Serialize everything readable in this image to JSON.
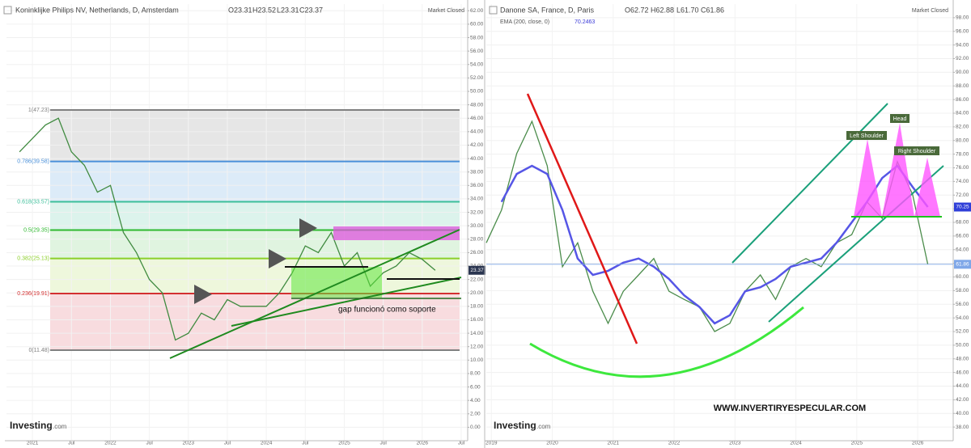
{
  "chart_data": [
    {
      "type": "line",
      "title": "Koninklijke Philips NV, Netherlands, D, Amsterdam",
      "ohlc": [
        "O23.31",
        "H23.52",
        "L23.31",
        "C23.37"
      ],
      "status": "Market Closed",
      "watermark_brand": "Investing",
      "watermark_suffix": ".com",
      "xlim": [
        "2020-09",
        "2026-08"
      ],
      "ylim": [
        -2,
        63
      ],
      "grid": true,
      "x": [
        "2020-11",
        "2021-01",
        "2021-03",
        "2021-05",
        "2021-07",
        "2021-09",
        "2021-11",
        "2022-01",
        "2022-03",
        "2022-05",
        "2022-07",
        "2022-09",
        "2022-11",
        "2023-01",
        "2023-03",
        "2023-05",
        "2023-07",
        "2023-09",
        "2023-11",
        "2024-01",
        "2024-03",
        "2024-05",
        "2024-07",
        "2024-09",
        "2024-11",
        "2025-01",
        "2025-03",
        "2025-05",
        "2025-07",
        "2025-09",
        "2025-11",
        "2026-01",
        "2026-03"
      ],
      "series": [
        {
          "color": "#3f8a3f",
          "values": [
            41,
            43,
            45,
            46,
            41,
            39,
            35,
            36,
            29,
            26,
            22,
            20,
            13,
            14,
            17,
            16,
            19,
            18,
            18,
            18,
            20,
            23,
            27,
            26,
            29,
            24,
            26,
            21,
            23,
            24,
            26,
            25,
            23.37
          ]
        }
      ],
      "price_labels": [
        {
          "value": 23.37,
          "label": "23.37",
          "color": "#2a3550"
        }
      ],
      "fib_levels": [
        {
          "label": "1(47.23)",
          "value": 47.23,
          "color": "#808080",
          "band": "#e6e6e6"
        },
        {
          "label": "0.786(39.58)",
          "value": 39.58,
          "color": "#4a90d9",
          "band": "#dcebf8"
        },
        {
          "label": "0.618(33.57)",
          "value": 33.57,
          "color": "#3cbf9a",
          "band": "#dcf3ec"
        },
        {
          "label": "0.5(29.35)",
          "value": 29.35,
          "color": "#2fb82f",
          "band": "#e0f4e0"
        },
        {
          "label": "0.382(25.13)",
          "value": 25.13,
          "color": "#8ccf2a",
          "band": "#eef7dc"
        },
        {
          "label": "0.236(19.91)",
          "value": 19.91,
          "color": "#d33030",
          "band": "#f8dcdf"
        },
        {
          "label": "0(11.48)",
          "value": 11.48,
          "color": "#808080"
        }
      ],
      "annotations": [
        "gap funcionó como soporte"
      ],
      "xticks": [
        {
          "value": "2021-01",
          "label": "2021"
        },
        {
          "value": "2021-07",
          "label": "Jul"
        },
        {
          "value": "2022-01",
          "label": "2022"
        },
        {
          "value": "2022-07",
          "label": "Jul"
        },
        {
          "value": "2023-01",
          "label": "2023"
        },
        {
          "value": "2023-07",
          "label": "Jul"
        },
        {
          "value": "2024-01",
          "label": "2024"
        },
        {
          "value": "2024-07",
          "label": "Jul"
        },
        {
          "value": "2025-01",
          "label": "2025"
        },
        {
          "value": "2025-07",
          "label": "Jul"
        },
        {
          "value": "2026-01",
          "label": "2026"
        },
        {
          "value": "2026-07",
          "label": "Jul"
        }
      ],
      "yticks": [
        {
          "value": 0,
          "label": "0.00"
        },
        {
          "value": 2,
          "label": "2.00"
        },
        {
          "value": 4,
          "label": "4.00"
        },
        {
          "value": 6,
          "label": "6.00"
        },
        {
          "value": 8,
          "label": "8.00"
        },
        {
          "value": 10,
          "label": "10.00"
        },
        {
          "value": 12,
          "label": "12.00"
        },
        {
          "value": 14,
          "label": "14.00"
        },
        {
          "value": 16,
          "label": "16.00"
        },
        {
          "value": 18,
          "label": "18.00"
        },
        {
          "value": 20,
          "label": "20.00"
        },
        {
          "value": 22,
          "label": "22.00"
        },
        {
          "value": 24,
          "label": "24.00"
        },
        {
          "value": 26,
          "label": "26.00"
        },
        {
          "value": 28,
          "label": "28.00"
        },
        {
          "value": 30,
          "label": "30.00"
        },
        {
          "value": 32,
          "label": "32.00"
        },
        {
          "value": 34,
          "label": "34.00"
        },
        {
          "value": 36,
          "label": "36.00"
        },
        {
          "value": 38,
          "label": "38.00"
        },
        {
          "value": 40,
          "label": "40.00"
        },
        {
          "value": 42,
          "label": "42.00"
        },
        {
          "value": 44,
          "label": "44.00"
        },
        {
          "value": 46,
          "label": "46.00"
        },
        {
          "value": 48,
          "label": "48.00"
        },
        {
          "value": 50,
          "label": "50.00"
        },
        {
          "value": 52,
          "label": "52.00"
        },
        {
          "value": 54,
          "label": "54.00"
        },
        {
          "value": 56,
          "label": "56.00"
        },
        {
          "value": 58,
          "label": "58.00"
        },
        {
          "value": 60,
          "label": "60.00"
        },
        {
          "value": 62,
          "label": "62.00"
        }
      ]
    },
    {
      "type": "line",
      "title": "Danone SA, France, D, Paris",
      "ohlc": [
        "O62.72",
        "H62.88",
        "L61.70",
        "C61.86"
      ],
      "indicator_value": 70.2463,
      "status": "Market Closed",
      "watermark_brand": "Investing",
      "watermark_suffix": ".com",
      "xlim": [
        "2018-12",
        "2026-08"
      ],
      "ylim": [
        36,
        100
      ],
      "grid": true,
      "x": [
        "2018-12",
        "2019-03",
        "2019-06",
        "2019-09",
        "2019-12",
        "2020-03",
        "2020-06",
        "2020-09",
        "2020-12",
        "2021-03",
        "2021-06",
        "2021-09",
        "2021-12",
        "2022-03",
        "2022-06",
        "2022-09",
        "2022-12",
        "2023-03",
        "2023-06",
        "2023-09",
        "2023-12",
        "2024-03",
        "2024-06",
        "2024-09",
        "2024-12",
        "2025-03",
        "2025-06",
        "2025-09",
        "2025-12",
        "2026-03"
      ],
      "series": [
        {
          "color": "#4b8c4b",
          "values": [
            65.0,
            69.8,
            78.1,
            82.8,
            76.3,
            61.5,
            65.0,
            57.9,
            53.2,
            57.9,
            60.3,
            62.7,
            57.9,
            56.7,
            55.6,
            52.0,
            53.2,
            57.9,
            60.3,
            56.7,
            61.5,
            62.7,
            61.5,
            65.0,
            66.2,
            71.0,
            68.6,
            76.9,
            72.1,
            61.86
          ]
        },
        {
          "name": "EMA (200, close, 0)",
          "color": "#5656e6",
          "values": [
            null,
            71.0,
            75.1,
            76.3,
            75.1,
            69.8,
            62.7,
            60.3,
            60.9,
            62.1,
            62.7,
            61.5,
            59.7,
            57.3,
            55.6,
            53.2,
            54.4,
            57.9,
            58.5,
            59.7,
            61.5,
            62.1,
            62.7,
            65.0,
            68.0,
            71.0,
            74.5,
            76.3,
            73.2,
            70.25
          ]
        }
      ],
      "price_labels": [
        {
          "value": 70.25,
          "label": "70.25",
          "color": "#2f3fd8",
          "line": false
        },
        {
          "value": 61.86,
          "label": "61.86",
          "color": "#7fa7e8",
          "line": true
        }
      ],
      "annotations": [
        "Left Shoulder",
        "Head",
        "Right Shoulder",
        "WWW.INVERTIRYESPECULAR.COM"
      ],
      "xticks": [
        {
          "value": "2019-01",
          "label": "2019"
        },
        {
          "value": "2020-01",
          "label": "2020"
        },
        {
          "value": "2021-01",
          "label": "2021"
        },
        {
          "value": "2022-01",
          "label": "2022"
        },
        {
          "value": "2023-01",
          "label": "2023"
        },
        {
          "value": "2024-01",
          "label": "2024"
        },
        {
          "value": "2025-01",
          "label": "2025"
        },
        {
          "value": "2026-01",
          "label": "2026"
        }
      ],
      "yticks": [
        {
          "value": 38,
          "label": "38.00"
        },
        {
          "value": 40,
          "label": "40.00"
        },
        {
          "value": 42,
          "label": "42.00"
        },
        {
          "value": 44,
          "label": "44.00"
        },
        {
          "value": 46,
          "label": "46.00"
        },
        {
          "value": 48,
          "label": "48.00"
        },
        {
          "value": 50,
          "label": "50.00"
        },
        {
          "value": 52,
          "label": "52.00"
        },
        {
          "value": 54,
          "label": "54.00"
        },
        {
          "value": 56,
          "label": "56.00"
        },
        {
          "value": 58,
          "label": "58.00"
        },
        {
          "value": 60,
          "label": "60.00"
        },
        {
          "value": 62,
          "label": "62.00"
        },
        {
          "value": 64,
          "label": "64.00"
        },
        {
          "value": 66,
          "label": "66.00"
        },
        {
          "value": 68,
          "label": "68.00"
        },
        {
          "value": 70,
          "label": "70.00"
        },
        {
          "value": 72,
          "label": "72.00"
        },
        {
          "value": 74,
          "label": "74.00"
        },
        {
          "value": 76,
          "label": "76.00"
        },
        {
          "value": 78,
          "label": "78.00"
        },
        {
          "value": 80,
          "label": "80.00"
        },
        {
          "value": 82,
          "label": "82.00"
        },
        {
          "value": 84,
          "label": "84.00"
        },
        {
          "value": 86,
          "label": "86.00"
        },
        {
          "value": 88,
          "label": "88.00"
        },
        {
          "value": 90,
          "label": "90.00"
        },
        {
          "value": 92,
          "label": "92.00"
        },
        {
          "value": 94,
          "label": "94.00"
        },
        {
          "value": 96,
          "label": "96.00"
        },
        {
          "value": 98,
          "label": "98.00"
        }
      ]
    }
  ]
}
